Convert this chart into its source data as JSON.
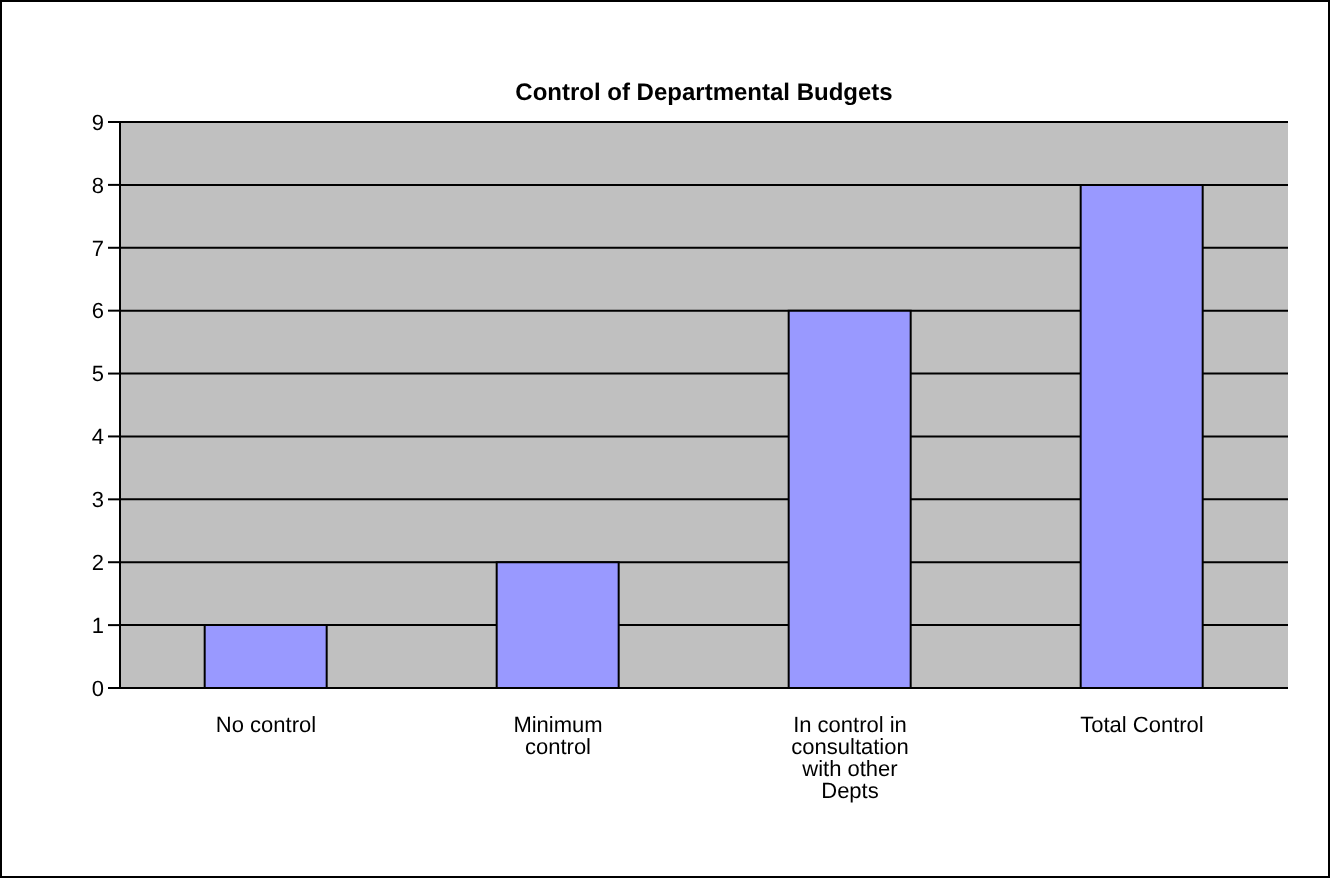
{
  "chart_data": {
    "type": "bar",
    "title": "Control of Departmental Budgets",
    "categories": [
      "No control",
      "Minimum control",
      "In control in consultation with other Depts",
      "Total Control"
    ],
    "values": [
      1,
      2,
      6,
      8
    ],
    "color": "#9999ff",
    "ylim": [
      0,
      9
    ],
    "yticks": [
      0,
      1,
      2,
      3,
      4,
      5,
      6,
      7,
      8,
      9
    ],
    "grid": "y"
  }
}
